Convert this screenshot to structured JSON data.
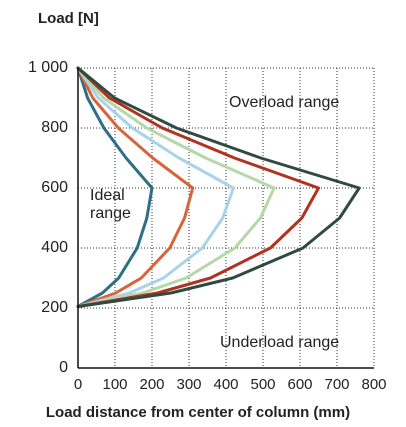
{
  "chart_data": {
    "type": "line",
    "ylabel": "Load [N]",
    "xlabel": "Load distance from center of column (mm)",
    "annotations": [
      "Overload range",
      "Ideal range",
      "Underload range"
    ],
    "xlim": [
      0,
      800
    ],
    "ylim": [
      0,
      1000
    ],
    "xticks": [
      0,
      100,
      200,
      300,
      400,
      500,
      600,
      700,
      800
    ],
    "yticks": [
      0,
      200,
      400,
      600,
      800,
      {
        "value": 1000,
        "label": "1 000"
      }
    ],
    "grid": true,
    "series": [
      {
        "color": "#2e6f86",
        "x": [
          0,
          26,
          70,
          130,
          200,
          186,
          160,
          110,
          66,
          0
        ],
        "values": [
          1000,
          900,
          800,
          700,
          600,
          500,
          400,
          300,
          250,
          205
        ]
      },
      {
        "color": "#d8643a",
        "x": [
          0,
          40,
          109,
          202,
          310,
          288,
          248,
          171,
          102,
          0
        ],
        "values": [
          1000,
          900,
          800,
          700,
          600,
          500,
          400,
          300,
          250,
          205
        ]
      },
      {
        "color": "#a9d3ea",
        "x": [
          0,
          55,
          147,
          273,
          420,
          391,
          336,
          231,
          139,
          0
        ],
        "values": [
          1000,
          900,
          800,
          700,
          600,
          500,
          400,
          300,
          250,
          205
        ]
      },
      {
        "color": "#b6d7a8",
        "x": [
          0,
          69,
          186,
          345,
          530,
          493,
          424,
          292,
          175,
          0
        ],
        "values": [
          1000,
          900,
          800,
          700,
          600,
          500,
          400,
          300,
          250,
          205
        ]
      },
      {
        "color": "#b0321f",
        "x": [
          0,
          85,
          228,
          423,
          650,
          605,
          520,
          358,
          215,
          0
        ],
        "values": [
          1000,
          900,
          800,
          700,
          600,
          500,
          400,
          300,
          250,
          205
        ]
      },
      {
        "color": "#2f4a3f",
        "x": [
          0,
          99,
          266,
          494,
          760,
          707,
          608,
          418,
          251,
          0
        ],
        "values": [
          1000,
          900,
          800,
          700,
          600,
          500,
          400,
          300,
          250,
          205
        ]
      }
    ]
  }
}
